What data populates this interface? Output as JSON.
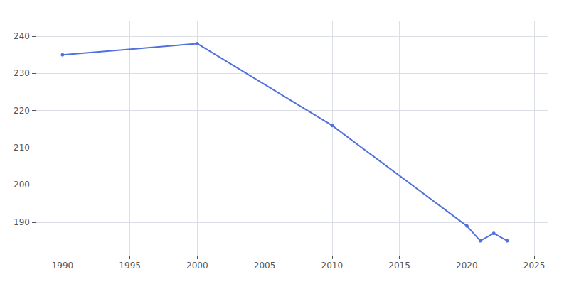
{
  "chart_data": {
    "type": "line",
    "x": [
      1990,
      2000,
      2010,
      2020,
      2021,
      2022,
      2023
    ],
    "values": [
      235,
      238,
      216,
      189,
      185,
      187,
      185
    ],
    "xlim": [
      1988,
      2026
    ],
    "xticks": [
      1990,
      1995,
      2000,
      2005,
      2010,
      2015,
      2020,
      2025
    ],
    "ylim": [
      181,
      244
    ],
    "yticks": [
      190,
      200,
      210,
      220,
      230,
      240
    ],
    "grid": true,
    "marker": "circle"
  }
}
